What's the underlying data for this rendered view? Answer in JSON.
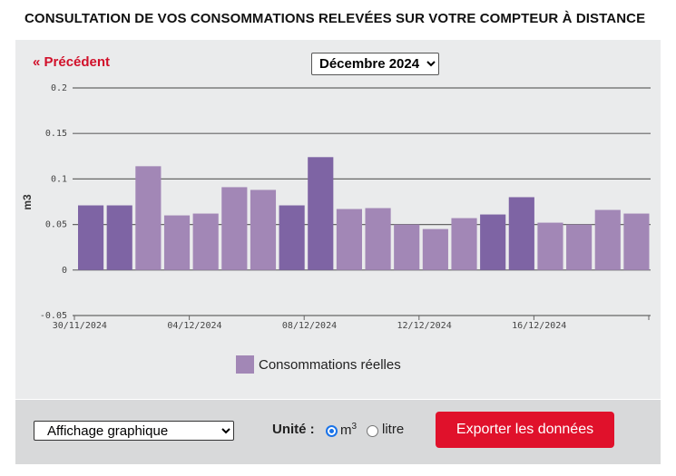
{
  "page_title": "CONSULTATION DE VOS CONSOMMATIONS RELEVÉES SUR VOTRE COMPTEUR À DISTANCE",
  "nav": {
    "prev_label": "« Précédent"
  },
  "month_select": {
    "selected": "Décembre 2024"
  },
  "colors": {
    "bar_dark": "#7e64a4",
    "bar_light": "#a287b6",
    "accent_red": "#e0112b",
    "grid": "#666666"
  },
  "chart_data": {
    "type": "bar",
    "ylabel": "m3",
    "ylim": [
      -0.05,
      0.2
    ],
    "yticks": [
      "0.2",
      "0.15",
      "0.1",
      "0.05",
      "0",
      "-0.05"
    ],
    "ytick_values": [
      0.2,
      0.15,
      0.1,
      0.05,
      0,
      -0.05
    ],
    "xtick_labels": [
      "30/11/2024",
      "04/12/2024",
      "08/12/2024",
      "12/12/2024",
      "16/12/2024"
    ],
    "xtick_indices": [
      0,
      4,
      8,
      12,
      16
    ],
    "categories": [
      "30/11/2024",
      "01/12/2024",
      "02/12/2024",
      "03/12/2024",
      "04/12/2024",
      "05/12/2024",
      "06/12/2024",
      "07/12/2024",
      "08/12/2024",
      "09/12/2024",
      "10/12/2024",
      "11/12/2024",
      "12/12/2024",
      "13/12/2024",
      "14/12/2024",
      "15/12/2024",
      "16/12/2024",
      "17/12/2024",
      "18/12/2024",
      "19/12/2024"
    ],
    "values": [
      0.071,
      0.071,
      0.114,
      0.06,
      0.062,
      0.091,
      0.088,
      0.071,
      0.124,
      0.067,
      0.068,
      0.05,
      0.045,
      0.057,
      0.061,
      0.08,
      0.052,
      0.05,
      0.066,
      0.062
    ],
    "shade": [
      "dark",
      "dark",
      "light",
      "light",
      "light",
      "light",
      "light",
      "dark",
      "dark",
      "light",
      "light",
      "light",
      "light",
      "light",
      "dark",
      "dark",
      "light",
      "light",
      "light",
      "light"
    ],
    "legend": [
      "Consommations réelles"
    ],
    "legend_position": "bottom",
    "grid": true
  },
  "footer": {
    "display_select": "Affichage graphique",
    "unit_label": "Unité :",
    "unit_m3": "m",
    "unit_m3_sup": "3",
    "unit_litre": "litre",
    "export_label": "Exporter les données"
  }
}
